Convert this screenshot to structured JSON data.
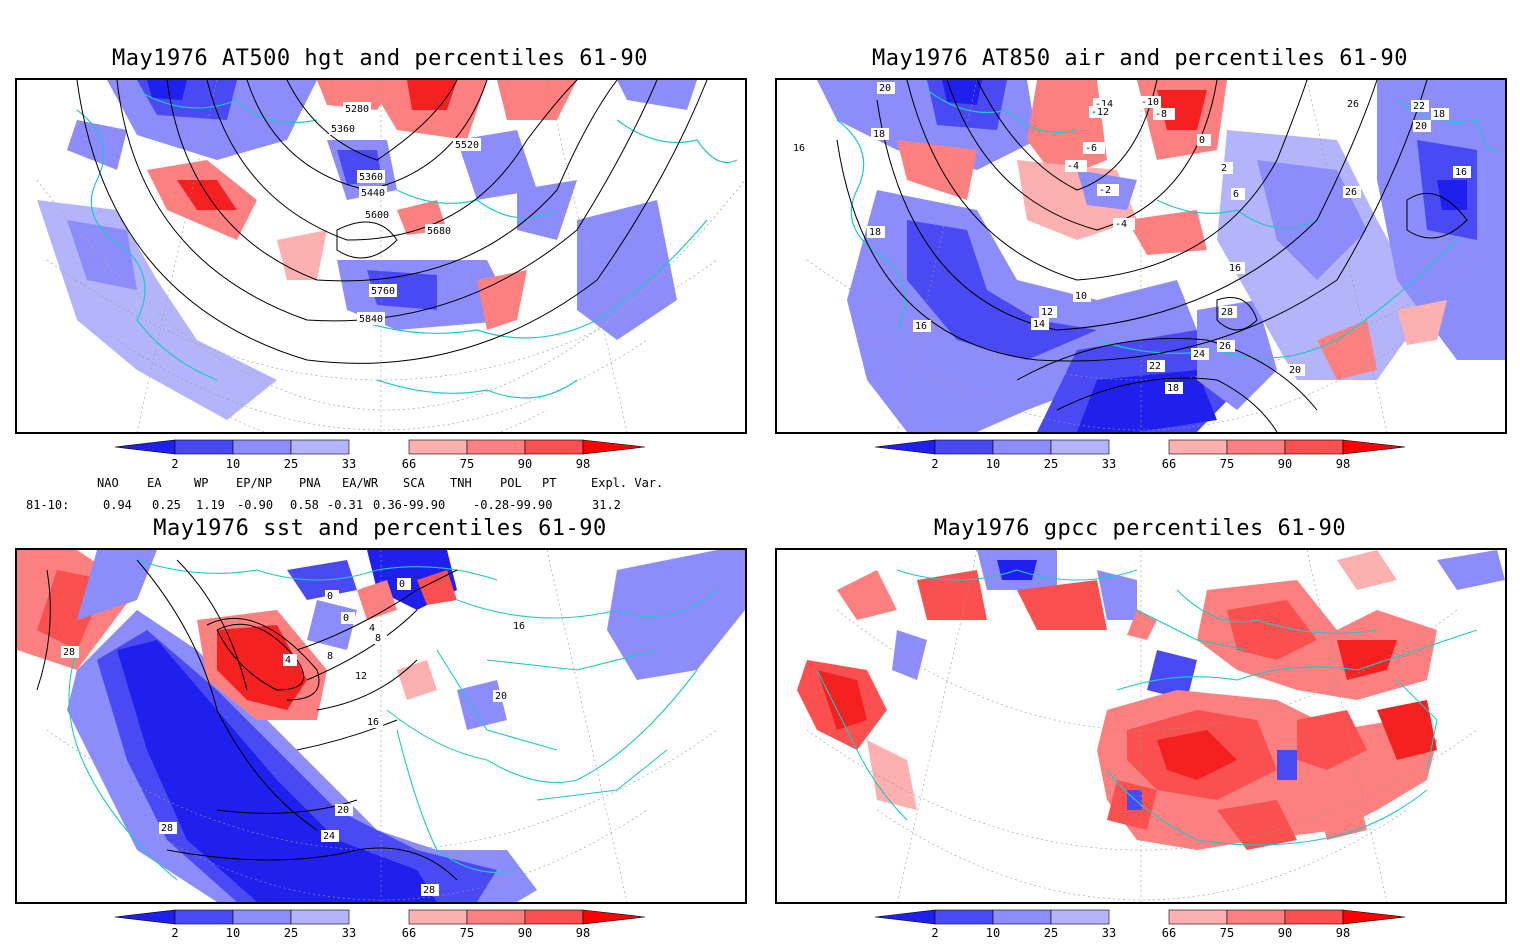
{
  "panels": [
    {
      "id": "tl",
      "title": "May1976 AT500 hgt and percentiles 61-90",
      "contour_labels": [
        "5280",
        "5360",
        "5520",
        "5360",
        "5440",
        "5600",
        "5680",
        "5760",
        "5840"
      ]
    },
    {
      "id": "tr",
      "title": "May1976 AT850 air and percentiles 61-90",
      "contour_labels": [
        "20",
        "18",
        "16",
        "-14",
        "-12",
        "-10",
        "-8",
        "-6",
        "-4",
        "-2",
        "0",
        "2",
        "-4",
        "6",
        "16",
        "26",
        "22",
        "20",
        "18",
        "16",
        "26",
        "18",
        "16",
        "10",
        "12",
        "14",
        "28",
        "26",
        "24",
        "22",
        "18",
        "20"
      ]
    },
    {
      "id": "bl",
      "title": "May1976 sst and percentiles 61-90",
      "contour_labels": [
        "0",
        "0",
        "0",
        "4",
        "8",
        "4",
        "8",
        "12",
        "16",
        "20",
        "24",
        "28",
        "28",
        "28",
        "16",
        "20"
      ]
    },
    {
      "id": "br",
      "title": "May1976 gpcc percentiles 61-90",
      "contour_labels": []
    }
  ],
  "colorbar": {
    "labels": [
      "2",
      "10",
      "25",
      "33",
      "66",
      "75",
      "90",
      "98"
    ],
    "colors": {
      "c2": "#ff0000",
      "blue_dark": "#2020ee",
      "blue_mid": "#4a4af5",
      "blue_light": "#8c8cfa",
      "blue_pale": "#b4b4fb",
      "red_pale": "#fcb0b0",
      "red_light": "#fc8080",
      "red_mid": "#fa5050",
      "red_dark": "#f52020",
      "coast": "#20c8c8"
    }
  },
  "indices": {
    "headers": [
      "NAO",
      "EA",
      "WP",
      "EP/NP",
      "PNA",
      "EA/WR",
      "SCA",
      "TNH",
      "POL",
      "PT",
      "Expl. Var."
    ],
    "row_label": "81-10:",
    "values": [
      "0.94",
      "0.25",
      "1.19",
      "-0.90",
      "0.58",
      "-0.31",
      "0.36-99.90",
      "-0.28-99.90",
      "31.2"
    ]
  }
}
